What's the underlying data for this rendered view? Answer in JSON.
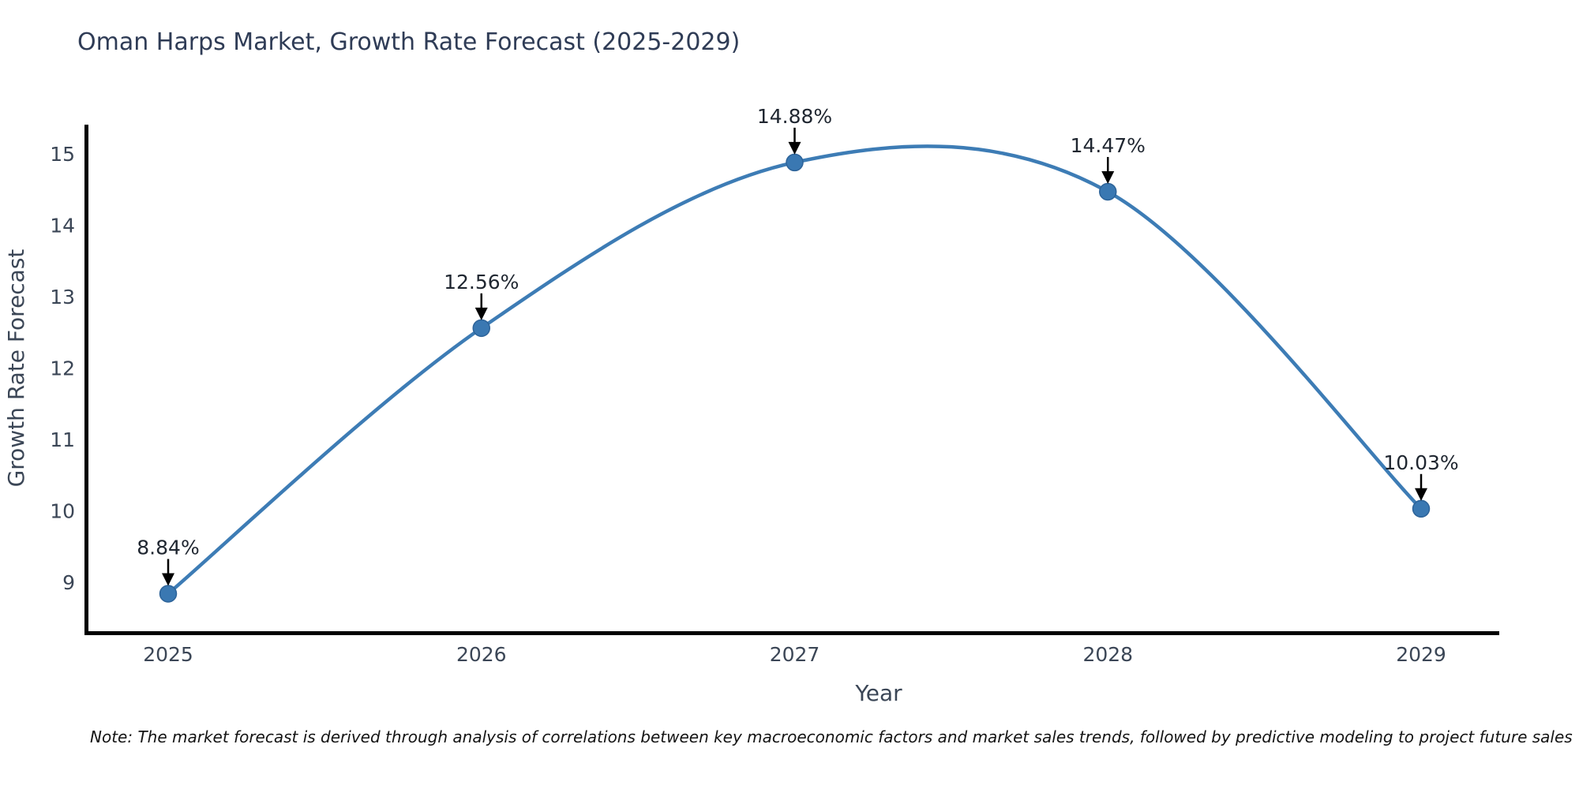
{
  "chart": {
    "title": "Oman Harps Market, Growth Rate Forecast (2025-2029)",
    "note": "Note: The market forecast is derived through analysis of correlations between key macroeconomic factors and market sales trends, followed by predictive modeling to project future sales"
  },
  "chart_data": {
    "type": "line",
    "line_shape": "spline",
    "title": "Oman Harps Market, Growth Rate Forecast (2025-2029)",
    "xlabel": "Year",
    "ylabel": "Growth Rate Forecast",
    "x": [
      2025,
      2026,
      2027,
      2028,
      2029
    ],
    "values": [
      8.84,
      12.56,
      14.88,
      14.47,
      10.03
    ],
    "point_labels": [
      "8.84%",
      "12.56%",
      "14.88%",
      "14.47%",
      "10.03%"
    ],
    "xticks": [
      "2025",
      "2026",
      "2027",
      "2028",
      "2029"
    ],
    "yticks": [
      9,
      10,
      11,
      12,
      13,
      14,
      15
    ],
    "ylim": [
      8.3,
      15.4
    ],
    "grid": false,
    "legend_position": "none",
    "markers": true,
    "annotations_style": "value label above point with black down arrow",
    "colors": {
      "line": "#3d7cb5",
      "marker_fill": "#3a78b2",
      "marker_edge": "#2d6399",
      "axis": "#000000",
      "tick_label": "#3b4656",
      "axis_title": "#3b4656",
      "annotation_text": "#1f2630",
      "arrow": "#000000",
      "title": "#2f3c56"
    }
  }
}
